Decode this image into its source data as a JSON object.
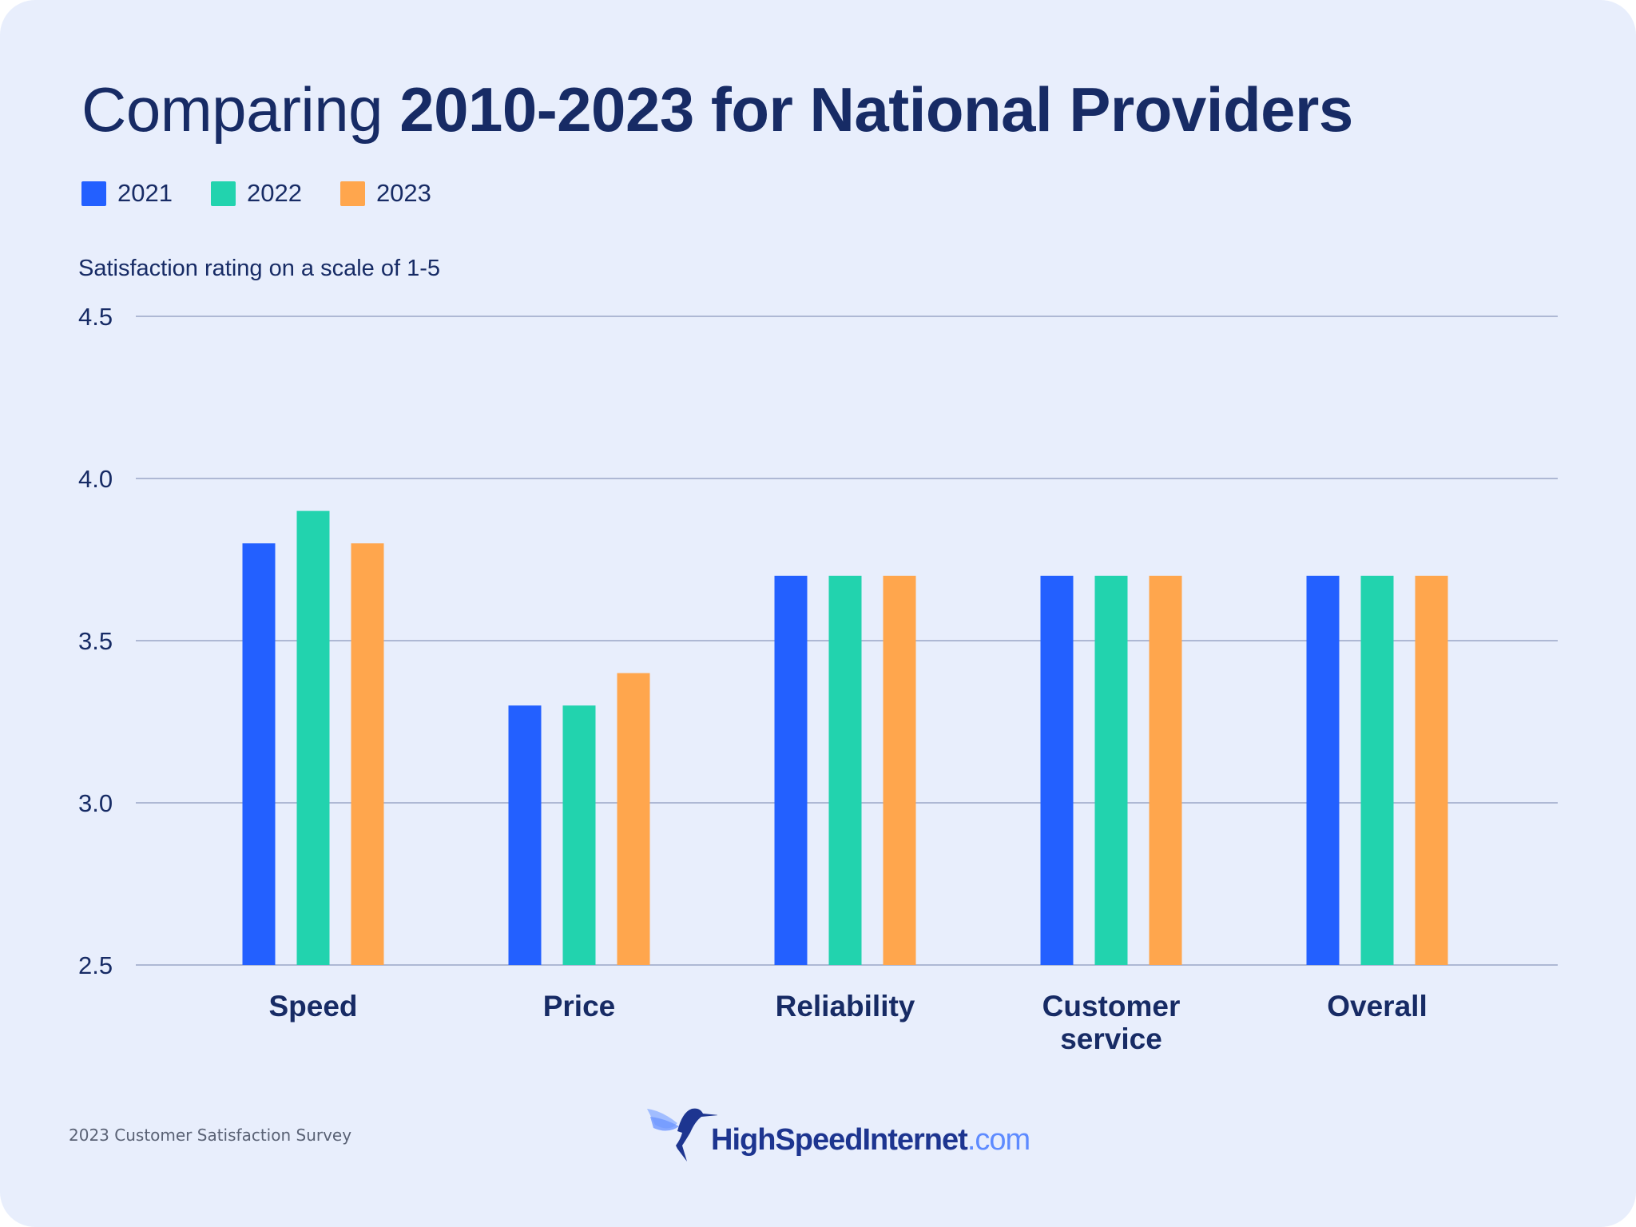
{
  "title": {
    "light": "Comparing ",
    "bold": "2010-2023 for National Providers"
  },
  "legend": [
    {
      "label": "2021",
      "color": "#2360FF"
    },
    {
      "label": "2022",
      "color": "#22D3AE"
    },
    {
      "label": "2023",
      "color": "#FFA64D"
    }
  ],
  "footer": "2023 Customer Satisfaction Survey",
  "logo": {
    "name": "HighSpeedInternet",
    "tld": ".com"
  },
  "chart_data": {
    "type": "bar",
    "title": "Comparing 2010-2023 for National Providers",
    "ylabel": "Satisfaction rating on a scale of 1-5",
    "xlabel": "",
    "ylim": [
      2.5,
      4.5
    ],
    "yticks": [
      "4.5",
      "4.0",
      "3.5",
      "3.0",
      "2.5"
    ],
    "grid": true,
    "legend_position": "top-left",
    "categories": [
      "Speed",
      "Price",
      "Reliability",
      "Customer service",
      "Overall"
    ],
    "series": [
      {
        "name": "2021",
        "color": "#2360FF",
        "values": [
          3.8,
          3.3,
          3.7,
          3.7,
          3.7
        ]
      },
      {
        "name": "2022",
        "color": "#22D3AE",
        "values": [
          3.9,
          3.3,
          3.7,
          3.7,
          3.7
        ]
      },
      {
        "name": "2023",
        "color": "#FFA64D",
        "values": [
          3.8,
          3.4,
          3.7,
          3.7,
          3.7
        ]
      }
    ]
  }
}
